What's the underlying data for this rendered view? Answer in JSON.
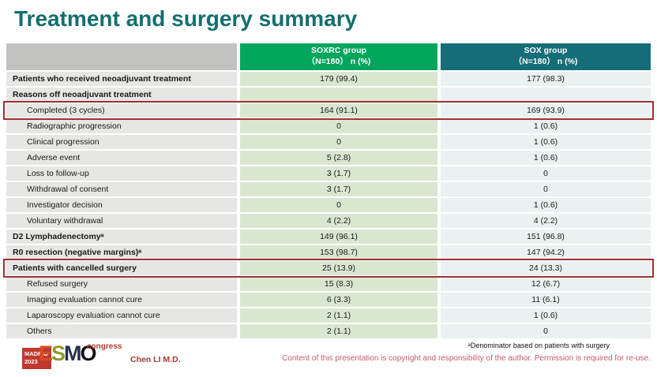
{
  "slide": {
    "title": "Treatment and surgery summary",
    "presenter": "Chen LI M.D.",
    "footnote": "ᵃDenominator based on patients with surgery",
    "copyright": "Content of this presentation is copyright and responsibility of the author. Permission is required for re-use.",
    "logo": {
      "city": "MADRID",
      "year": "2023",
      "esmo_letters": [
        {
          "ch": "E",
          "color": "#d94a26"
        },
        {
          "ch": "S",
          "color": "#8f9a2e"
        },
        {
          "ch": "M",
          "color": "#23304d"
        },
        {
          "ch": "O",
          "color": "#101010"
        }
      ],
      "congress": "congress"
    }
  },
  "table": {
    "header": [
      {
        "group": "SOXRC group",
        "sub": "（N=180） n (%)",
        "bg": "#00a65c"
      },
      {
        "group": "SOX group",
        "sub": "（N=180） n (%)",
        "bg": "#156d77"
      }
    ],
    "rows": [
      {
        "label": "Patients who received neoadjuvant treatment",
        "soxrc": "179 (99.4)",
        "sox": "177 (98.3)",
        "bold": true,
        "highlight": false
      },
      {
        "label": "Reasons off neoadjuvant treatment",
        "soxrc": "",
        "sox": "",
        "bold": true,
        "highlight": false
      },
      {
        "label": "Completed (3 cycles)",
        "soxrc": "164 (91.1)",
        "sox": "169 (93.9)",
        "bold": false,
        "highlight": true
      },
      {
        "label": "Radiographic progression",
        "soxrc": "0",
        "sox": "1 (0.6)",
        "bold": false,
        "highlight": false
      },
      {
        "label": "Clinical progression",
        "soxrc": "0",
        "sox": "1 (0.6)",
        "bold": false,
        "highlight": false
      },
      {
        "label": "Adverse event",
        "soxrc": "5 (2.8)",
        "sox": "1 (0.6)",
        "bold": false,
        "highlight": false
      },
      {
        "label": "Loss to follow-up",
        "soxrc": "3 (1.7)",
        "sox": "0",
        "bold": false,
        "highlight": false
      },
      {
        "label": "Withdrawal of consent",
        "soxrc": "3 (1.7)",
        "sox": "0",
        "bold": false,
        "highlight": false
      },
      {
        "label": "Investigator decision",
        "soxrc": "0",
        "sox": "1 (0.6)",
        "bold": false,
        "highlight": false
      },
      {
        "label": "Voluntary withdrawal",
        "soxrc": "4 (2.2)",
        "sox": "4 (2.2)",
        "bold": false,
        "highlight": false
      },
      {
        "label": "D2 Lymphadenectomyᵃ",
        "soxrc": "149 (96.1)",
        "sox": "151 (96.8)",
        "bold": true,
        "highlight": false
      },
      {
        "label": "R0 resection (negative margins)ᵃ",
        "soxrc": "153 (98.7)",
        "sox": "147 (94.2)",
        "bold": true,
        "highlight": false
      },
      {
        "label": "Patients with cancelled surgery",
        "soxrc": "25 (13.9)",
        "sox": "24 (13.3)",
        "bold": true,
        "highlight": true
      },
      {
        "label": "Refused surgery",
        "soxrc": "15 (8.3)",
        "sox": "12 (6.7)",
        "bold": false,
        "highlight": false
      },
      {
        "label": "Imaging evaluation cannot cure",
        "soxrc": "6 (3.3)",
        "sox": "11 (6.1)",
        "bold": false,
        "highlight": false
      },
      {
        "label": "Laparoscopy evaluation cannot cure",
        "soxrc": "2 (1.1)",
        "sox": "1 (0.6)",
        "bold": false,
        "highlight": false
      },
      {
        "label": "Others",
        "soxrc": "2 (1.1)",
        "sox": "0",
        "bold": false,
        "highlight": false
      }
    ]
  },
  "colors": {
    "title": "#156e6e",
    "header_empty": "#c2c2c0",
    "header_soxrc": "#00a65c",
    "header_sox": "#156d77",
    "label_cell": "#e6e6e4",
    "soxrc_cell": "#d9e7d1",
    "sox_cell": "#ebf1f0",
    "highlight_border": "#a03030",
    "presenter": "#a53a32",
    "copyright": "#c25b6e"
  }
}
